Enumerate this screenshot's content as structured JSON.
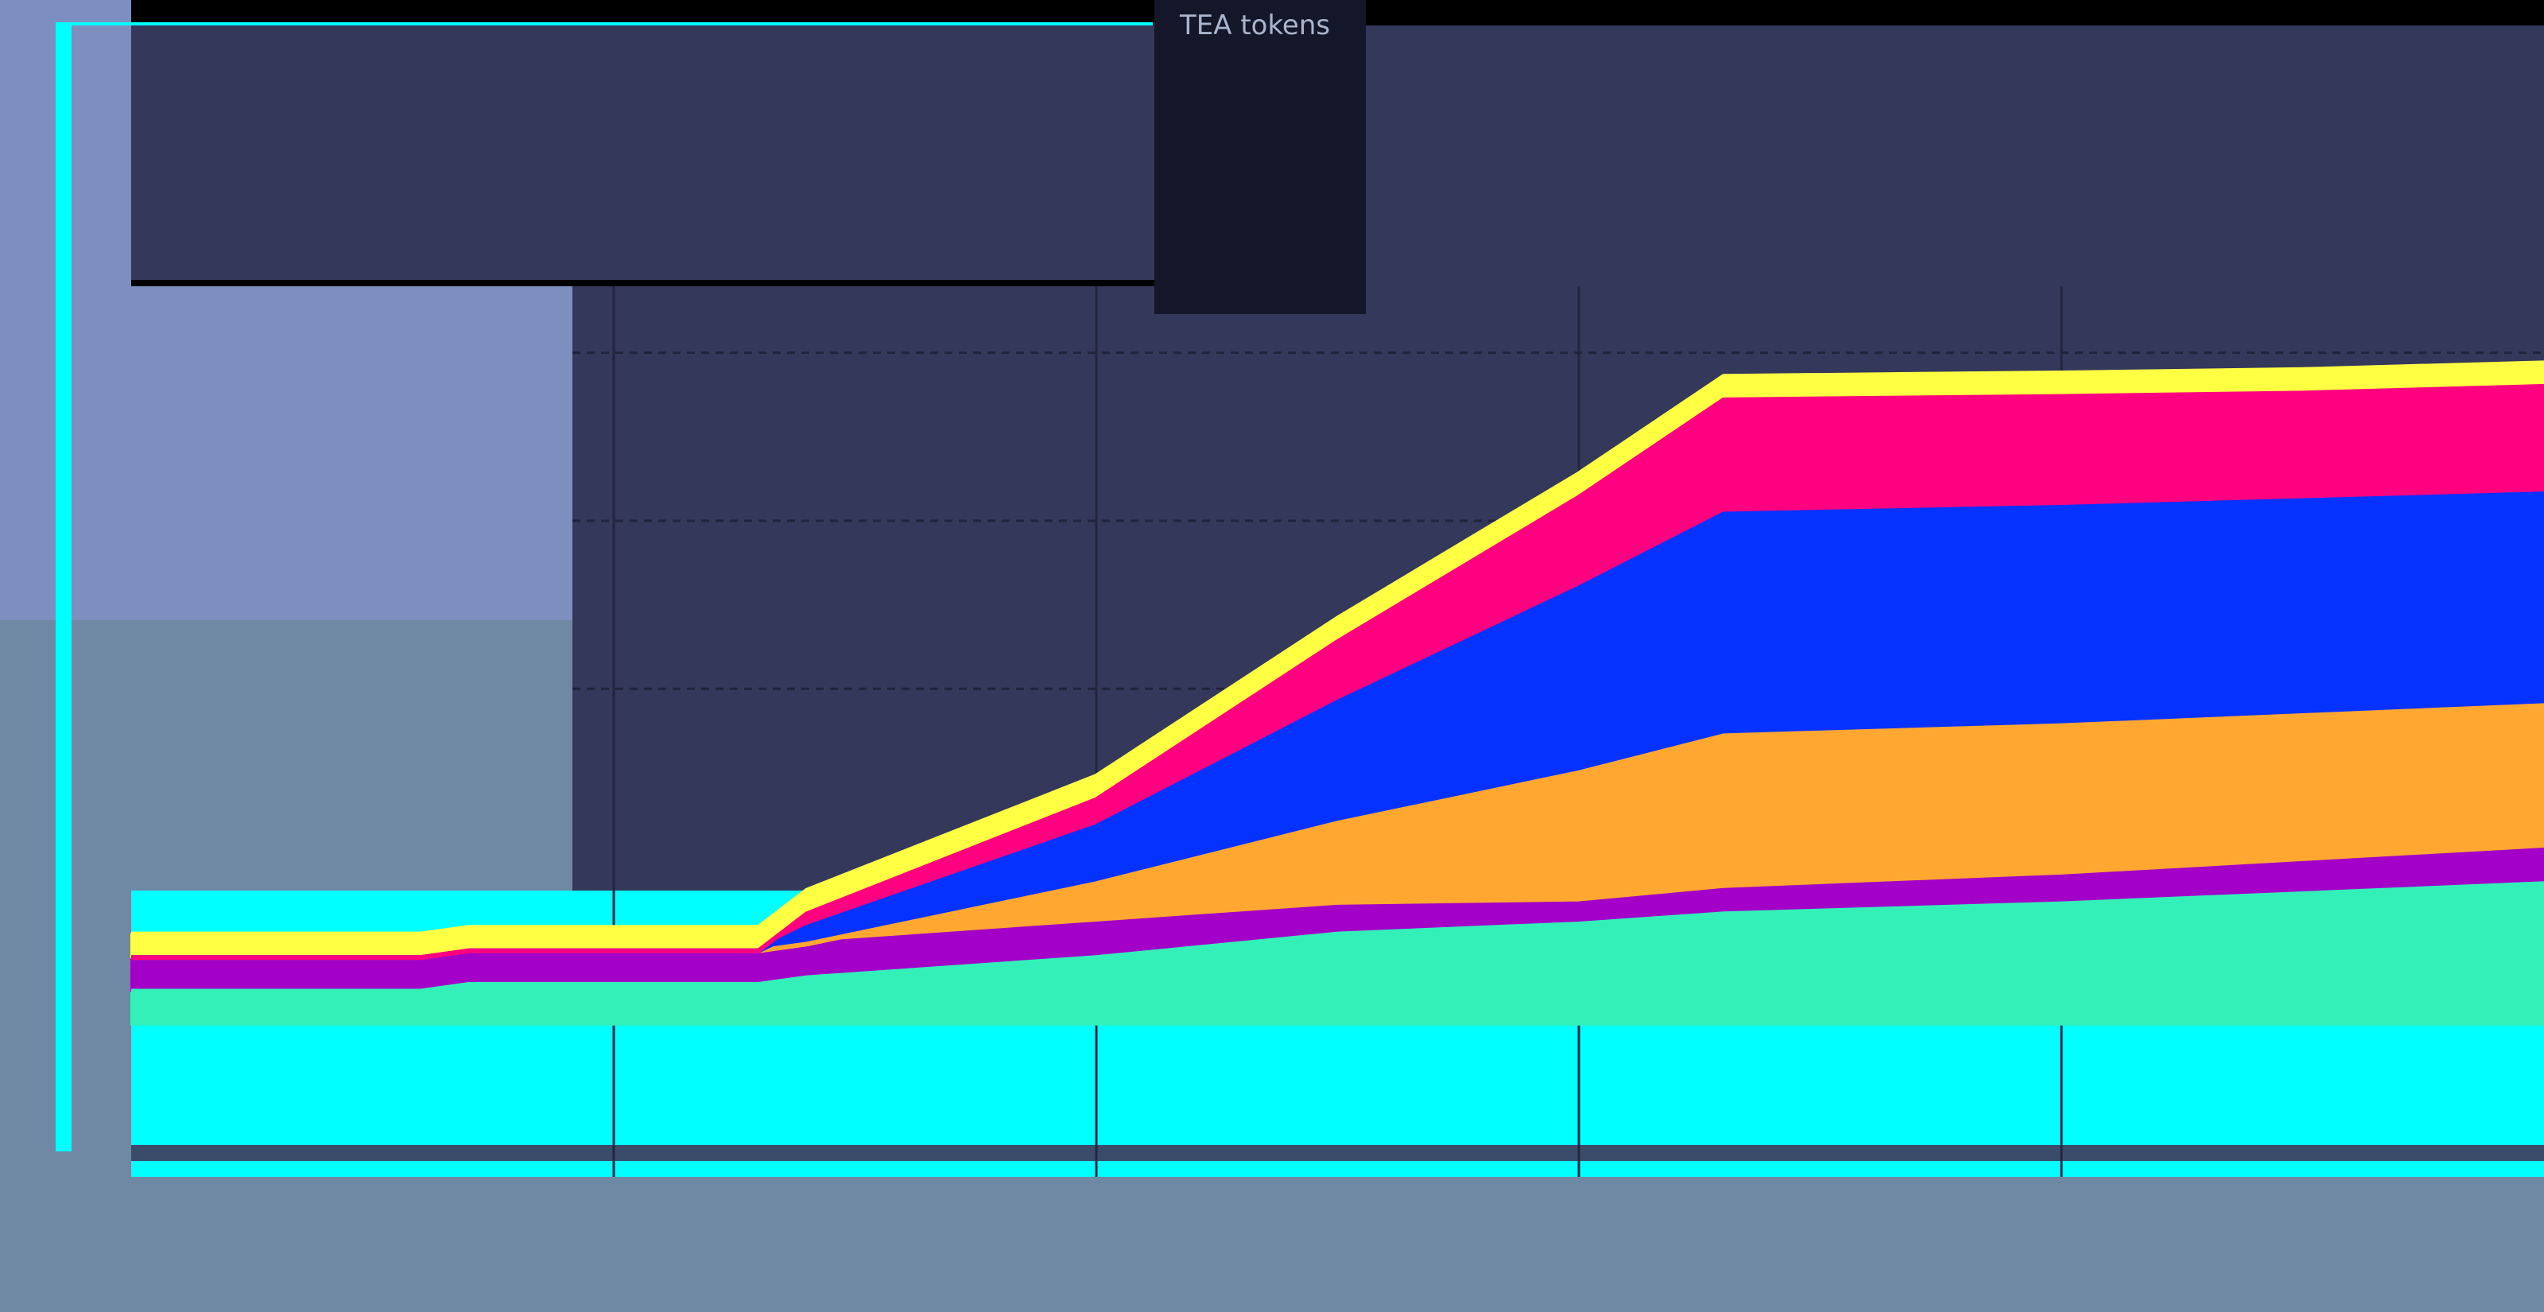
{
  "legend": {
    "title": "TEA tokens"
  },
  "chart_data": {
    "type": "area",
    "stacked": true,
    "title": "",
    "xlabel": "",
    "ylabel": "",
    "x": [
      0,
      0.6,
      0.7,
      1.3,
      1.4,
      2.0,
      2.5,
      3.0,
      3.3,
      4.0,
      4.5,
      5.0
    ],
    "xlim": [
      0,
      5.0
    ],
    "ylim": [
      -0.5,
      3.05
    ],
    "grid": true,
    "legend_position": "top-center",
    "colors": {
      "background": "#000000",
      "plot_fill": "#34385a",
      "legend_fill": "#14172a",
      "axis_band": "#7c8fbe",
      "axis_band_lower": "#6f89a4",
      "cyan": "#00ffff",
      "grid_line": "#222640"
    },
    "series": [
      {
        "color": "#33f0b8",
        "values": [
          0.1,
          0.1,
          0.12,
          0.12,
          0.14,
          0.2,
          0.27,
          0.3,
          0.33,
          0.36,
          0.39,
          0.42
        ]
      },
      {
        "color": "#a300c8",
        "values": [
          0.1,
          0.1,
          0.1,
          0.1,
          0.1,
          0.1,
          0.08,
          0.06,
          0.07,
          0.08,
          0.09,
          0.1
        ]
      },
      {
        "color": "#ffa731",
        "values": [
          0.0,
          0.0,
          0.0,
          0.0,
          0.0,
          0.12,
          0.25,
          0.39,
          0.46,
          0.45,
          0.44,
          0.43
        ]
      },
      {
        "color": "#0632ff",
        "values": [
          0.0,
          0.0,
          0.0,
          0.0,
          0.05,
          0.17,
          0.36,
          0.55,
          0.66,
          0.65,
          0.64,
          0.63
        ]
      },
      {
        "color": "#ff0080",
        "values": [
          0.0,
          0.0,
          0.0,
          0.0,
          0.04,
          0.08,
          0.18,
          0.27,
          0.34,
          0.33,
          0.32,
          0.32
        ]
      },
      {
        "color": "#ffff44",
        "values": [
          0.07,
          0.07,
          0.07,
          0.07,
          0.07,
          0.07,
          0.07,
          0.07,
          0.07,
          0.07,
          0.07,
          0.07
        ]
      }
    ]
  }
}
